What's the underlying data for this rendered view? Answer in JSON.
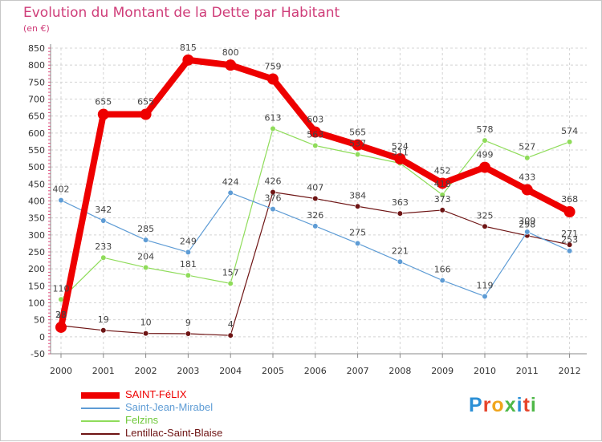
{
  "title": "Evolution du Montant de la Dette par Habitant",
  "subtitle": "(en €)",
  "logo": "Proxiti",
  "chart_data": {
    "type": "line",
    "title": "Evolution du Montant de la Dette par Habitant",
    "subtitle": "(en €)",
    "x": [
      "2000",
      "2001",
      "2002",
      "2003",
      "2004",
      "2005",
      "2006",
      "2007",
      "2008",
      "2009",
      "2010",
      "2011",
      "2012"
    ],
    "ylim": [
      -50,
      850
    ],
    "yticks": [
      -50,
      0,
      50,
      100,
      150,
      200,
      250,
      300,
      350,
      400,
      450,
      500,
      550,
      600,
      650,
      700,
      750,
      800,
      850
    ],
    "grid": true,
    "legend_position": "bottom-left",
    "series": [
      {
        "name": "Lentillac-Saint-Blaise",
        "color": "#6e1414",
        "values": [
          33,
          19,
          10,
          9,
          4,
          426,
          407,
          384,
          363,
          373,
          325,
          298,
          271
        ],
        "labels": [
          "33",
          "19",
          "10",
          "9",
          "4",
          "426",
          "407",
          "384",
          "363",
          "373",
          "325",
          "298",
          "271"
        ]
      },
      {
        "name": "Felzins",
        "color": "#8fdc5a",
        "values": [
          110,
          233,
          204,
          181,
          157,
          613,
          563,
          537,
          511,
          418,
          578,
          527,
          574
        ],
        "labels": [
          "110",
          "233",
          "204",
          "181",
          "157",
          "613",
          "563",
          "537",
          "511",
          "418",
          "578",
          "527",
          "574"
        ]
      },
      {
        "name": "Saint-Jean-Mirabel",
        "color": "#5e9cd5",
        "values": [
          402,
          342,
          285,
          249,
          424,
          376,
          326,
          275,
          221,
          166,
          119,
          309,
          253
        ],
        "labels": [
          "402",
          "342",
          "285",
          "249",
          "424",
          "376",
          "326",
          "275",
          "221",
          "166",
          "119",
          "309",
          "253"
        ]
      },
      {
        "name": "SAINT-FéLIX",
        "color": "#ee0000",
        "values": [
          28,
          655,
          655,
          815,
          800,
          759,
          603,
          565,
          524,
          452,
          499,
          433,
          368
        ],
        "labels": [
          "28",
          "655",
          "655",
          "815",
          "800",
          "759",
          "603",
          "565",
          "524",
          "452",
          "499",
          "433",
          "368"
        ]
      }
    ]
  },
  "legend": [
    {
      "label": "SAINT-FéLIX",
      "color": "#ee0000",
      "thickness": 8
    },
    {
      "label": "Saint-Jean-Mirabel",
      "color": "#5e9cd5",
      "thickness": 2
    },
    {
      "label": "Felzins",
      "color": "#8fdc5a",
      "thickness": 2
    },
    {
      "label": "Lentillac-Saint-Blaise",
      "color": "#6e1414",
      "thickness": 2
    }
  ]
}
